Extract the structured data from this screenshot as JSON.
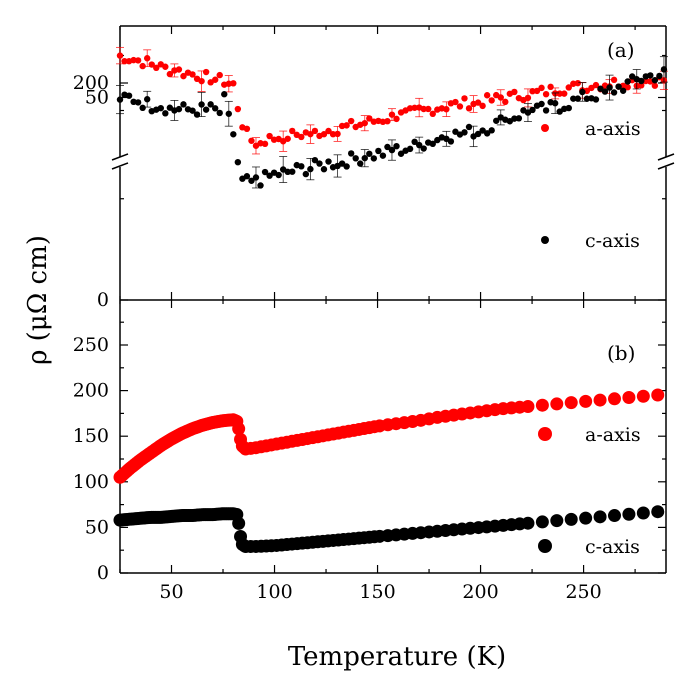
{
  "chart_data": [
    {
      "panel": "(a)",
      "type": "scatter",
      "broken_y_axis": true,
      "xlim": [
        25,
        290
      ],
      "x_ticks": [
        50,
        100,
        150,
        200,
        250
      ],
      "y_ticks_upper": [
        200
      ],
      "y_ticks_lower": [
        0,
        50
      ],
      "ylabel": "ρ (μΩ cm)",
      "xlabel": "Temperature (K)",
      "marker": "small dots with error bars",
      "legend_placement": "right",
      "series": [
        {
          "name": "a-axis",
          "color": "#ff0000",
          "x": [
            25,
            30,
            35,
            40,
            45,
            50,
            55,
            60,
            65,
            70,
            75,
            78,
            80,
            82,
            84,
            86,
            88,
            90,
            95,
            100,
            110,
            120,
            130,
            140,
            150,
            160,
            170,
            180,
            190,
            200,
            210,
            220,
            230,
            240,
            250,
            260,
            270,
            280,
            290
          ],
          "y": [
            225,
            222,
            220,
            218,
            214,
            212,
            210,
            208,
            206,
            204,
            202,
            200,
            198,
            180,
            165,
            155,
            150,
            145,
            148,
            150,
            153,
            155,
            158,
            162,
            166,
            170,
            174,
            178,
            181,
            183,
            186,
            189,
            192,
            195,
            197,
            199,
            201,
            202,
            203
          ]
        },
        {
          "name": "c-axis",
          "color": "#000000",
          "x": [
            25,
            30,
            35,
            40,
            45,
            50,
            55,
            60,
            65,
            70,
            75,
            78,
            80,
            82,
            84,
            86,
            88,
            90,
            95,
            100,
            110,
            120,
            130,
            140,
            150,
            160,
            170,
            180,
            190,
            200,
            210,
            220,
            230,
            240,
            250,
            260,
            270,
            280,
            290
          ],
          "y": [
            50,
            50,
            49,
            48,
            48,
            47,
            47,
            47,
            47,
            47,
            46,
            45,
            40,
            33,
            30,
            29,
            29,
            29,
            30,
            31,
            32,
            33,
            34,
            35,
            36,
            37,
            38,
            40,
            41,
            42,
            44,
            46,
            47,
            48,
            50,
            51,
            53,
            55,
            56
          ]
        }
      ]
    },
    {
      "panel": "(b)",
      "type": "scatter",
      "xlim": [
        25,
        290
      ],
      "ylim": [
        0,
        300
      ],
      "x_ticks": [
        50,
        100,
        150,
        200,
        250
      ],
      "y_ticks": [
        0,
        50,
        100,
        150,
        200,
        250
      ],
      "ylabel": "ρ (μΩ cm)",
      "xlabel": "Temperature (K)",
      "marker": "large dots",
      "legend_placement": "right",
      "series": [
        {
          "name": "a-axis",
          "color": "#ff0000",
          "x": [
            25,
            30,
            35,
            40,
            45,
            50,
            55,
            60,
            65,
            70,
            75,
            80,
            82,
            84,
            86,
            90,
            100,
            110,
            120,
            130,
            140,
            150,
            160,
            170,
            180,
            190,
            200,
            210,
            220,
            230,
            240,
            250,
            260,
            270,
            280,
            290
          ],
          "y": [
            105,
            115,
            124,
            132,
            140,
            147,
            153,
            158,
            162,
            165,
            167,
            168,
            166,
            140,
            136,
            137,
            141,
            145,
            149,
            153,
            157,
            161,
            164,
            167,
            171,
            174,
            177,
            180,
            182,
            184,
            186,
            188,
            190,
            192,
            194,
            196
          ]
        },
        {
          "name": "c-axis",
          "color": "#000000",
          "x": [
            25,
            30,
            35,
            40,
            45,
            50,
            55,
            60,
            65,
            70,
            75,
            80,
            82,
            84,
            86,
            90,
            100,
            110,
            120,
            130,
            140,
            150,
            160,
            170,
            180,
            190,
            200,
            210,
            220,
            230,
            240,
            250,
            260,
            270,
            280,
            290
          ],
          "y": [
            58,
            59,
            60,
            61,
            61,
            62,
            63,
            63,
            64,
            64,
            65,
            65,
            64,
            32,
            29,
            29,
            30,
            32,
            34,
            36,
            38,
            40,
            42,
            44,
            46,
            48,
            50,
            52,
            54,
            56,
            58,
            60,
            62,
            64,
            66,
            68
          ]
        }
      ]
    }
  ],
  "labels": {
    "panel_a": "(a)",
    "panel_b": "(b)",
    "legend_a_red": "a-axis",
    "legend_a_black": "c-axis",
    "legend_b_red": "a-axis",
    "legend_b_black": "c-axis",
    "xlabel": "Temperature (K)",
    "ylabel": "ρ (μΩ cm)",
    "x_ticks": [
      "50",
      "100",
      "150",
      "200",
      "250"
    ],
    "y_ticks_a_upper": [
      "200"
    ],
    "y_ticks_a_lower": [
      "50",
      "0"
    ],
    "y_ticks_b": [
      "250",
      "200",
      "150",
      "100",
      "50",
      "0"
    ]
  }
}
